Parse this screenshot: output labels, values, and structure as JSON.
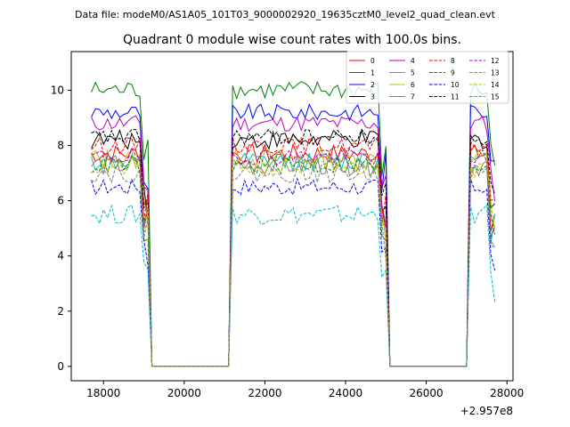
{
  "figure": {
    "suptitle": "Data file: modeM0/AS1A05_101T03_9000002920_19635cztM0_level2_quad_clean.evt"
  },
  "chart_data": {
    "type": "line",
    "title": "Quadrant 0 module wise count rates with 100.0s bins.",
    "xlabel": "",
    "ylabel": "",
    "x_offset_label": "+2.957e8",
    "xlim": [
      17200,
      28150
    ],
    "ylim": [
      -0.52,
      11.4
    ],
    "xticks": [
      18000,
      20000,
      22000,
      24000,
      26000,
      28000
    ],
    "yticks": [
      0,
      2,
      4,
      6,
      8,
      10
    ],
    "legend_position": "upper right",
    "legend_columns": 4,
    "segments": [
      {
        "x_start": 17700,
        "x_end": 19100
      },
      {
        "x_start": 21200,
        "x_end": 25000
      },
      {
        "x_start": 27100,
        "x_end": 27700
      }
    ],
    "gap_value": 0,
    "series": [
      {
        "name": "0",
        "color": "#ff0000",
        "dash": "solid",
        "level": 7.7,
        "noise": 0.35
      },
      {
        "name": "1",
        "color": "#008000",
        "dash": "solid",
        "level": 10.0,
        "noise": 0.35
      },
      {
        "name": "2",
        "color": "#0000ff",
        "dash": "solid",
        "level": 9.2,
        "noise": 0.3
      },
      {
        "name": "3",
        "color": "#000000",
        "dash": "solid",
        "level": 8.2,
        "noise": 0.35
      },
      {
        "name": "4",
        "color": "#bf00bf",
        "dash": "solid",
        "level": 8.8,
        "noise": 0.3
      },
      {
        "name": "5",
        "color": "#00bfbf",
        "dash": "solid",
        "level": 7.4,
        "noise": 0.35
      },
      {
        "name": "6",
        "color": "#bfbf00",
        "dash": "solid",
        "level": 7.5,
        "noise": 0.4
      },
      {
        "name": "7",
        "color": "#808080",
        "dash": "solid",
        "level": 7.3,
        "noise": 0.4
      },
      {
        "name": "8",
        "color": "#ff0000",
        "dash": "dashed",
        "level": 8.0,
        "noise": 0.3
      },
      {
        "name": "9",
        "color": "#008000",
        "dash": "dashed",
        "level": 7.3,
        "noise": 0.35
      },
      {
        "name": "10",
        "color": "#0000ff",
        "dash": "dashed",
        "level": 6.5,
        "noise": 0.3
      },
      {
        "name": "11",
        "color": "#000000",
        "dash": "dashed",
        "level": 8.3,
        "noise": 0.3
      },
      {
        "name": "12",
        "color": "#bf00bf",
        "dash": "dashed",
        "level": 7.6,
        "noise": 0.3
      },
      {
        "name": "13",
        "color": "#00bfbf",
        "dash": "dashed",
        "level": 5.5,
        "noise": 0.35
      },
      {
        "name": "14",
        "color": "#bfbf00",
        "dash": "dashed",
        "level": 7.2,
        "noise": 0.35
      },
      {
        "name": "15",
        "color": "#808080",
        "dash": "dashed",
        "level": 7.0,
        "noise": 0.35
      }
    ]
  }
}
